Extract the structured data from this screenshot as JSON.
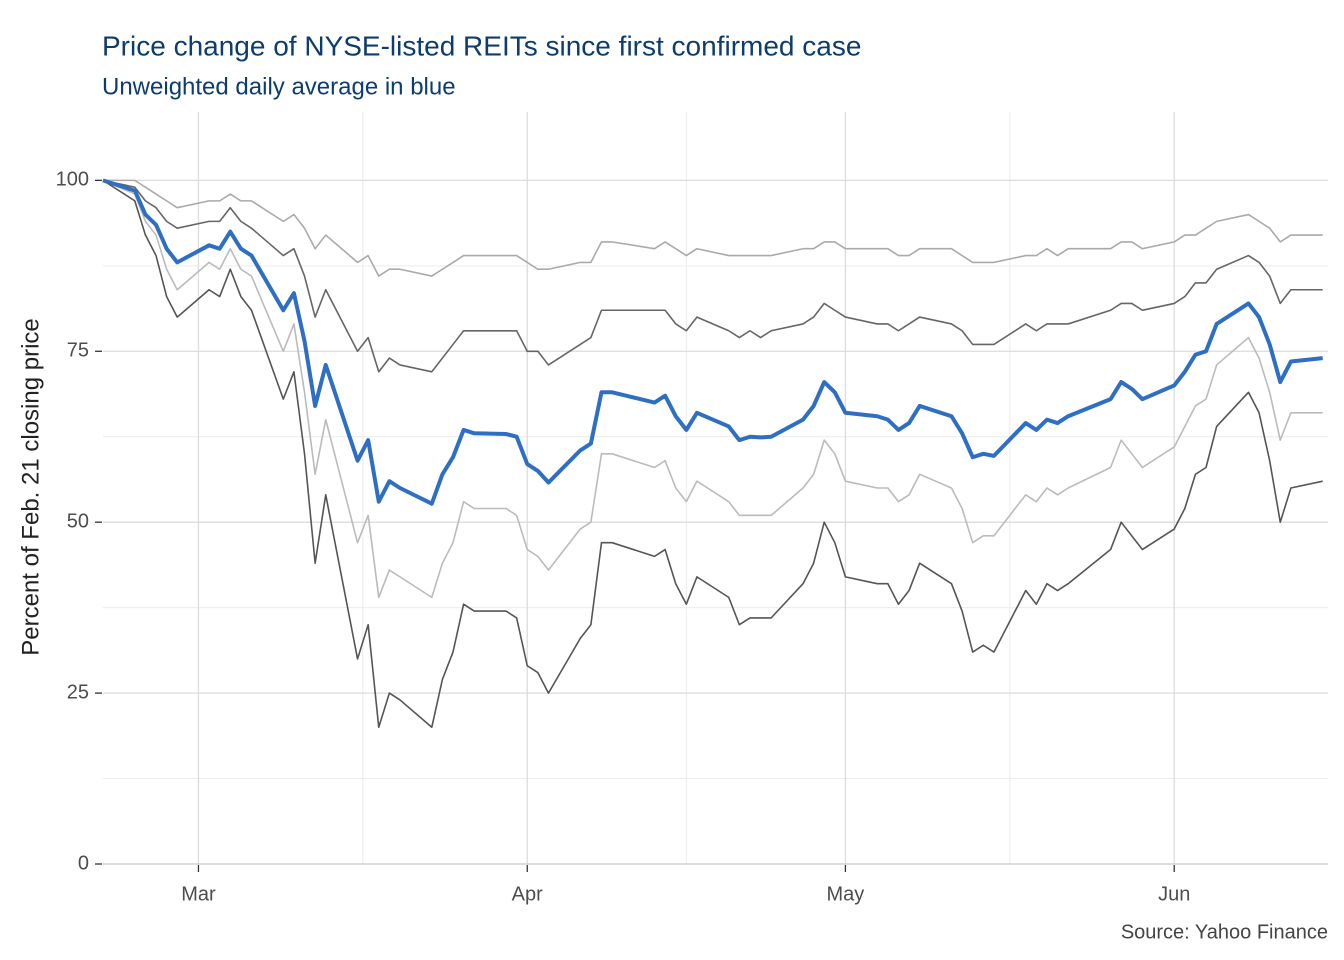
{
  "chart_data": {
    "type": "line",
    "title": "Price change of NYSE-listed REITs since first confirmed case",
    "subtitle": "Unweighted daily average in blue",
    "y_label": "Percent of Feb. 21 closing price",
    "source": "Source: Yahoo Finance",
    "x": [
      0,
      3,
      4,
      5,
      6,
      7,
      10,
      11,
      12,
      13,
      14,
      17,
      18,
      19,
      20,
      21,
      24,
      25,
      26,
      27,
      28,
      31,
      32,
      33,
      34,
      35,
      38,
      39,
      40,
      41,
      42,
      45,
      46,
      47,
      48,
      52,
      53,
      54,
      55,
      56,
      59,
      60,
      61,
      62,
      63,
      66,
      67,
      68,
      69,
      70,
      73,
      74,
      75,
      76,
      77,
      80,
      81,
      82,
      83,
      84,
      87,
      88,
      89,
      90,
      91,
      95,
      96,
      97,
      98,
      101,
      102,
      103,
      104,
      105,
      108,
      109,
      110,
      111,
      112,
      115
    ],
    "xlim": [
      0,
      115.5
    ],
    "xticks": [
      {
        "value": 9,
        "label": "Mar"
      },
      {
        "value": 40,
        "label": "Apr"
      },
      {
        "value": 70,
        "label": "May"
      },
      {
        "value": 101,
        "label": "Jun"
      }
    ],
    "x_minor_ticks": [
      24.5,
      55,
      85.5
    ],
    "ylim": [
      0,
      110
    ],
    "yticks": [
      0,
      25,
      50,
      75,
      100
    ],
    "y_minor_ticks": [
      12.5,
      37.5,
      62.5,
      87.5
    ],
    "grid": true,
    "series": [
      {
        "color": "#aaaaaa",
        "values": [
          100,
          100,
          99,
          98,
          97,
          96,
          97,
          97,
          98,
          97,
          97,
          94,
          95,
          93,
          90,
          92,
          88,
          89,
          86,
          87,
          87,
          86,
          87,
          88,
          89,
          89,
          89,
          89,
          88,
          87,
          87,
          88,
          88,
          91,
          91,
          90,
          91,
          90,
          89,
          90,
          89,
          89,
          89,
          89,
          89,
          90,
          90,
          91,
          91,
          90,
          90,
          90,
          89,
          89,
          90,
          90,
          89,
          88,
          88,
          88,
          89,
          89,
          90,
          89,
          90,
          90,
          91,
          91,
          90,
          91,
          92,
          92,
          93,
          94,
          95,
          94,
          93,
          91,
          92,
          92
        ]
      },
      {
        "color": "#666666",
        "values": [
          100,
          99,
          97,
          96,
          94,
          93,
          94,
          94,
          96,
          94,
          93,
          89,
          90,
          86,
          80,
          84,
          75,
          77,
          72,
          74,
          73,
          72,
          74,
          76,
          78,
          78,
          78,
          78,
          75,
          75,
          73,
          76,
          77,
          81,
          81,
          81,
          81,
          79,
          78,
          80,
          78,
          77,
          78,
          77,
          78,
          79,
          80,
          82,
          81,
          80,
          79,
          79,
          78,
          79,
          80,
          79,
          78,
          76,
          76,
          76,
          79,
          78,
          79,
          79,
          79,
          81,
          82,
          82,
          81,
          82,
          83,
          85,
          85,
          87,
          89,
          88,
          86,
          82,
          84,
          84
        ]
      },
      {
        "color": "#bbbbbb",
        "values": [
          100,
          98,
          94,
          92,
          87,
          84,
          88,
          87,
          90,
          87,
          86,
          75,
          79,
          69,
          57,
          65,
          47,
          51,
          39,
          43,
          42,
          39,
          44,
          47,
          53,
          52,
          52,
          51,
          46,
          45,
          43,
          49,
          50,
          60,
          60,
          58,
          59,
          55,
          53,
          56,
          53,
          51,
          51,
          51,
          51,
          55,
          57,
          62,
          60,
          56,
          55,
          55,
          53,
          54,
          57,
          55,
          52,
          47,
          48,
          48,
          54,
          53,
          55,
          54,
          55,
          58,
          62,
          60,
          58,
          61,
          64,
          67,
          68,
          73,
          77,
          74,
          69,
          62,
          66,
          66
        ]
      },
      {
        "color": "#555555",
        "values": [
          100,
          97,
          92,
          89,
          83,
          80,
          84,
          83,
          87,
          83,
          81,
          68,
          72,
          60,
          44,
          54,
          30,
          35,
          20,
          25,
          24,
          20,
          27,
          31,
          38,
          37,
          37,
          36,
          29,
          28,
          25,
          33,
          35,
          47,
          47,
          45,
          46,
          41,
          38,
          42,
          39,
          35,
          36,
          36,
          36,
          41,
          44,
          50,
          47,
          42,
          41,
          41,
          38,
          40,
          44,
          41,
          37,
          31,
          32,
          31,
          40,
          38,
          41,
          40,
          41,
          46,
          50,
          48,
          46,
          49,
          52,
          57,
          58,
          64,
          69,
          66,
          59,
          50,
          55,
          56
        ]
      },
      {
        "color": "#2e6fc4",
        "values": [
          100,
          98.5,
          95,
          93.5,
          90,
          88,
          90.5,
          90,
          92.5,
          90,
          89,
          81,
          83.5,
          76.5,
          67,
          73,
          59,
          62,
          53,
          56,
          55,
          52.7,
          57,
          59.5,
          63.5,
          63,
          62.9,
          62.5,
          58.5,
          57.5,
          55.8,
          60.5,
          61.5,
          69,
          69,
          67.5,
          68.5,
          65.5,
          63.5,
          66,
          64,
          62,
          62.5,
          62.4,
          62.5,
          65,
          67,
          70.5,
          69,
          66,
          65.5,
          65,
          63.5,
          64.5,
          67,
          65.5,
          63,
          59.5,
          60,
          59.7,
          64.5,
          63.5,
          65,
          64.5,
          65.5,
          68,
          70.5,
          69.5,
          68,
          70,
          72,
          74.5,
          75,
          79,
          82,
          80,
          76,
          70.5,
          73.5,
          74
        ]
      }
    ]
  }
}
